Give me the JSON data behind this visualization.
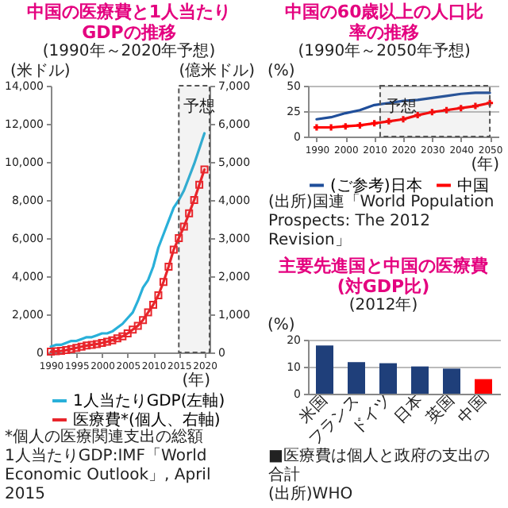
{
  "chart_data": [
    {
      "type": "line",
      "title": "中国の医療費と1人当たりGDPの推移",
      "subtitle": "(1990年～2020年予想)",
      "xlabel": "(年)",
      "ylabel": "(米ドル)",
      "y2label": "(億米ドル)",
      "x": [
        1990,
        1991,
        1992,
        1993,
        1994,
        1995,
        1996,
        1997,
        1998,
        1999,
        2000,
        2001,
        2002,
        2003,
        2004,
        2005,
        2006,
        2007,
        2008,
        2009,
        2010,
        2011,
        2012,
        2013,
        2014,
        2015,
        2016,
        2017,
        2018,
        2019,
        2020
      ],
      "xlim": [
        1990,
        2021
      ],
      "xticks": [
        1990,
        1995,
        2000,
        2005,
        2010,
        2015,
        2020
      ],
      "ylim": [
        0,
        14000
      ],
      "yticks": [
        0,
        {
          "value": 2000,
          "label": "2,000"
        },
        {
          "value": 4000,
          "label": "4,000"
        },
        {
          "value": 6000,
          "label": "6,000"
        },
        {
          "value": 8000,
          "label": "8,000"
        },
        {
          "value": 10000,
          "label": "10,000"
        },
        {
          "value": 12000,
          "label": "12,000"
        },
        {
          "value": 14000,
          "label": "14,000"
        }
      ],
      "y2lim": [
        0,
        7000
      ],
      "y2ticks": [
        0,
        {
          "value": 1000,
          "label": "1,000"
        },
        {
          "value": 2000,
          "label": "2,000"
        },
        {
          "value": 3000,
          "label": "3,000"
        },
        {
          "value": 4000,
          "label": "4,000"
        },
        {
          "value": 5000,
          "label": "5,000"
        },
        {
          "value": 6000,
          "label": "6,000"
        },
        {
          "value": 7000,
          "label": "7,000"
        }
      ],
      "legend": "bottom",
      "series": [
        {
          "name": "1人当たりGDP(左軸)",
          "color": "#29b0d9",
          "values": [
            300,
            400,
            400,
            500,
            600,
            600,
            700,
            800,
            800,
            900,
            1000,
            1000,
            1100,
            1300,
            1500,
            1800,
            2100,
            2700,
            3400,
            3800,
            4500,
            5500,
            6200,
            6900,
            7600,
            8000,
            8500,
            9200,
            9900,
            10700,
            11500
          ]
        },
        {
          "name": "医療費*(個人、右軸)",
          "color": "#e8252b",
          "axis": "y2",
          "marker": "square",
          "values": [
            20,
            30,
            40,
            60,
            90,
            120,
            150,
            180,
            200,
            220,
            250,
            280,
            320,
            370,
            420,
            500,
            600,
            700,
            850,
            1050,
            1250,
            1500,
            1850,
            2250,
            2700,
            3000,
            3300,
            3650,
            4000,
            4400,
            4800
          ]
        }
      ],
      "bands": [
        {
          "axis": "x",
          "from": 2015,
          "to": 2021,
          "label": "予想"
        }
      ],
      "annotations": [
        "*個人の医療関連支出の総額",
        "1人当たりGDP:IMF「World Economic Outlook」, April 2015"
      ]
    },
    {
      "type": "line",
      "title": "中国の60歳以上の人口比率の推移",
      "subtitle": "(1990年～2050年予想)",
      "xlabel": "(年)",
      "ylabel": "(%)",
      "xlim": [
        1987,
        2053
      ],
      "xticks": [
        1990,
        2000,
        2010,
        2020,
        2030,
        2040,
        2050
      ],
      "ylim": [
        0,
        50
      ],
      "yticks": [
        0,
        25,
        50
      ],
      "grid": "y",
      "legend": "bottom",
      "series": [
        {
          "name": "(ご参考)日本",
          "color": "#1f4e9a",
          "x": [
            1990,
            1995,
            2000,
            2005,
            2010,
            2015,
            2020,
            2025,
            2030,
            2035,
            2040,
            2045,
            2050
          ],
          "values": [
            17,
            19,
            23,
            26,
            31,
            33,
            35,
            36,
            38,
            40,
            42,
            43,
            43
          ]
        },
        {
          "name": "中国",
          "color": "#ff0000",
          "marker": "cross",
          "x": [
            1990,
            1995,
            2000,
            2005,
            2010,
            2015,
            2020,
            2025,
            2030,
            2035,
            2040,
            2045,
            2050
          ],
          "values": [
            9,
            9,
            10,
            11,
            13,
            15,
            17,
            21,
            24,
            26,
            28,
            30,
            33
          ]
        }
      ],
      "bands": [
        {
          "axis": "x",
          "from": 2012,
          "to": 2050,
          "label": "予想"
        }
      ],
      "annotations": [
        "(出所)国連「World Population Prospects: The 2012 Revision」"
      ]
    },
    {
      "type": "bar",
      "title": "主要先進国と中国の医療費(対GDP比)",
      "subtitle": "(2012年)",
      "ylabel": "(%)",
      "categories": [
        "米国",
        "フランス",
        "ドイツ",
        "日本",
        "英国",
        "中国"
      ],
      "values": [
        17.9,
        11.7,
        11.3,
        10.1,
        9.3,
        5.4
      ],
      "colors": [
        "#1f3f7a",
        "#1f3f7a",
        "#1f3f7a",
        "#1f3f7a",
        "#1f3f7a",
        "#ff0000"
      ],
      "ylim": [
        0,
        20
      ],
      "yticks": [
        0,
        10,
        20
      ],
      "grid": "y",
      "annotations": [
        "■医療費は個人と政府の支出の合計",
        "(出所)WHO"
      ]
    }
  ]
}
